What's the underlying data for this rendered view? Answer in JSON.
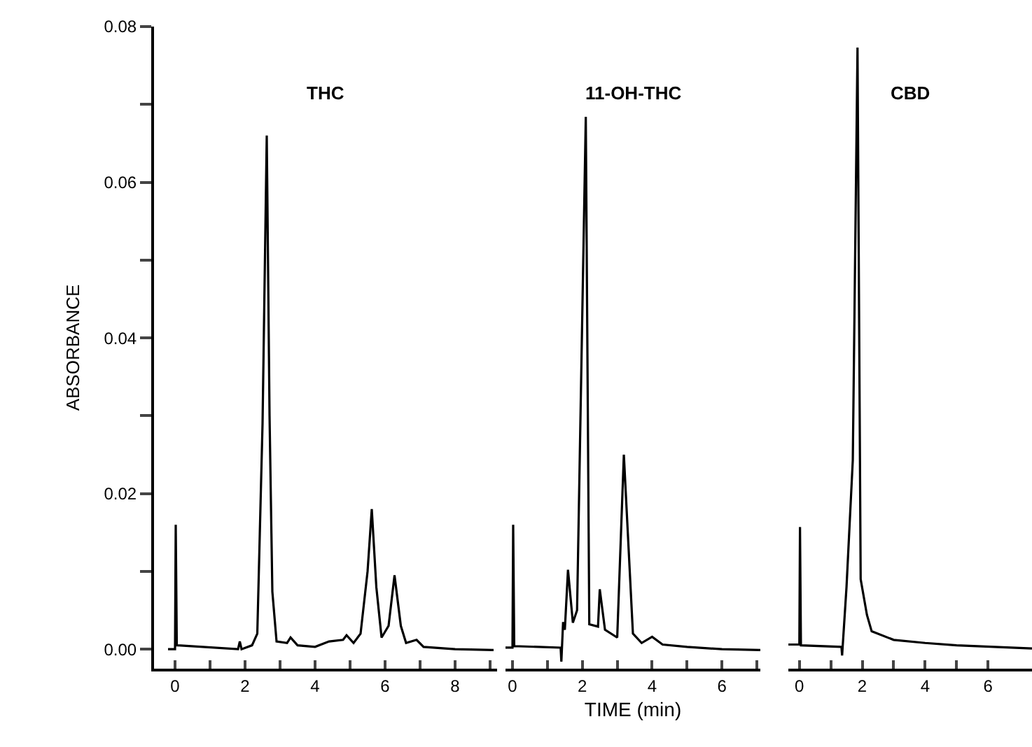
{
  "chart_data": [
    {
      "type": "line",
      "title": "THC",
      "ylabel": "ABSORBANCE",
      "xlim": [
        -0.6,
        9.2
      ],
      "ylim": [
        -0.0025,
        0.08
      ],
      "xticks": [
        0,
        {
          "value": 1,
          "label": null
        },
        2,
        {
          "value": 3,
          "label": null
        },
        4,
        {
          "value": 5,
          "label": null
        },
        6,
        {
          "value": 7,
          "label": null
        },
        8,
        {
          "value": 9,
          "label": null
        }
      ],
      "yticks": [
        {
          "value": 0,
          "label": "0.00"
        },
        {
          "value": 0.01,
          "label": null
        },
        {
          "value": 0.02,
          "label": "0.02"
        },
        {
          "value": 0.03,
          "label": null
        },
        {
          "value": 0.04,
          "label": "0.04"
        },
        {
          "value": 0.05,
          "label": null
        },
        {
          "value": 0.06,
          "label": "0.06"
        },
        {
          "value": 0.07,
          "label": null
        },
        {
          "value": 0.08,
          "label": "0.08"
        }
      ],
      "series": [
        {
          "color": "#000000",
          "x": [
            -0.2,
            0,
            0.02,
            0.05,
            1.8,
            1.85,
            1.9,
            2.2,
            2.35,
            2.5,
            2.62,
            2.7,
            2.78,
            2.9,
            3.2,
            3.3,
            3.5,
            4.0,
            4.4,
            4.8,
            4.9,
            5.1,
            5.3,
            5.5,
            5.62,
            5.75,
            5.9,
            6.1,
            6.27,
            6.45,
            6.6,
            6.9,
            7.1,
            8.0,
            9.1
          ],
          "values": [
            0,
            0,
            0.016,
            0.0005,
            0,
            0.001,
            0,
            0.0005,
            0.002,
            0.029,
            0.066,
            0.03,
            0.0074,
            0.001,
            0.0008,
            0.0015,
            0.0005,
            0.0003,
            0.001,
            0.0012,
            0.0018,
            0.0008,
            0.002,
            0.01,
            0.018,
            0.008,
            0.0015,
            0.003,
            0.0095,
            0.003,
            0.0008,
            0.0012,
            0.0003,
            0,
            -0.0001
          ]
        }
      ],
      "tick_labels": "xy"
    },
    {
      "type": "line",
      "title": "11-OH-THC",
      "xlabel": "TIME (min)",
      "xlim": [
        -0.2,
        7.1
      ],
      "ylim": [
        -0.0025,
        0.08
      ],
      "xticks": [
        0,
        {
          "value": 1,
          "label": null
        },
        2,
        {
          "value": 3,
          "label": null
        },
        4,
        {
          "value": 5,
          "label": null
        },
        6,
        {
          "value": 7,
          "label": null
        }
      ],
      "series": [
        {
          "color": "#000000",
          "x": [
            -0.2,
            0,
            0.02,
            0.05,
            1.38,
            1.4,
            1.45,
            1.5,
            1.59,
            1.73,
            1.85,
            2.1,
            2.2,
            2.45,
            2.5,
            2.65,
            3.0,
            3.19,
            3.45,
            3.7,
            4.0,
            4.3,
            5.0,
            6.0,
            7.1
          ],
          "values": [
            0.0002,
            0.0002,
            0.016,
            0.0004,
            0.0002,
            -0.0016,
            0.0035,
            0.0025,
            0.0102,
            0.0034,
            0.005,
            0.0684,
            0.0032,
            0.0029,
            0.0077,
            0.0025,
            0.0015,
            0.025,
            0.002,
            0.0008,
            0.0016,
            0.0006,
            0.0003,
            0,
            -0.0001
          ]
        }
      ],
      "tick_labels": "x"
    },
    {
      "type": "line",
      "title": "CBD",
      "xlim": [
        -0.35,
        7.4
      ],
      "ylim": [
        -0.0025,
        0.08
      ],
      "xticks": [
        0,
        {
          "value": 1,
          "label": null
        },
        2,
        {
          "value": 3,
          "label": null
        },
        4,
        {
          "value": 5,
          "label": null
        },
        6
      ],
      "series": [
        {
          "color": "#000000",
          "x": [
            -0.35,
            0,
            0.02,
            0.05,
            1.34,
            1.36,
            1.5,
            1.7,
            1.85,
            1.95,
            2.15,
            2.3,
            3.0,
            4.0,
            5.0,
            7.4
          ],
          "values": [
            0.0006,
            0.0006,
            0.0157,
            0.0005,
            0.0003,
            -0.0008,
            0.008,
            0.0243,
            0.0773,
            0.009,
            0.0044,
            0.0023,
            0.0012,
            0.0008,
            0.0005,
            0.0001
          ]
        }
      ],
      "tick_labels": "x"
    }
  ]
}
